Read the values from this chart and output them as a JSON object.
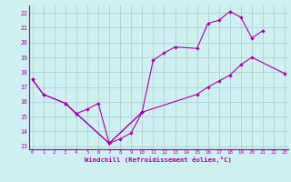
{
  "title": "",
  "xlabel": "Windchill (Refroidissement éolien,°C)",
  "bg_color": "#cff0f0",
  "grid_color": "#aacccc",
  "line_color": "#aa00aa",
  "line1_x": [
    0,
    1,
    3,
    4,
    7,
    10,
    11,
    12,
    13,
    15,
    16,
    17,
    18,
    19,
    20,
    21
  ],
  "line1_y": [
    17.5,
    16.5,
    15.9,
    15.2,
    13.2,
    15.3,
    18.8,
    19.3,
    19.7,
    19.6,
    21.3,
    21.5,
    22.1,
    21.7,
    20.3,
    20.8
  ],
  "line2_x": [
    0,
    1,
    3,
    7,
    10,
    15,
    16,
    17,
    18,
    19,
    20,
    23
  ],
  "line2_y": [
    17.5,
    16.5,
    15.9,
    13.2,
    15.3,
    16.5,
    17.0,
    17.4,
    17.8,
    18.5,
    19.0,
    17.9
  ],
  "line3_x": [
    3,
    4,
    5,
    6,
    7,
    8,
    9,
    10
  ],
  "line3_y": [
    15.9,
    15.2,
    15.5,
    15.9,
    13.2,
    13.5,
    13.9,
    15.3
  ],
  "ylim_min": 12.8,
  "ylim_max": 22.5,
  "xlim_min": -0.3,
  "xlim_max": 23.3,
  "yticks": [
    13,
    14,
    15,
    16,
    17,
    18,
    19,
    20,
    21,
    22
  ],
  "xticks": [
    0,
    1,
    2,
    3,
    4,
    5,
    6,
    7,
    8,
    9,
    10,
    11,
    12,
    13,
    14,
    15,
    16,
    17,
    18,
    19,
    20,
    21,
    22,
    23
  ]
}
